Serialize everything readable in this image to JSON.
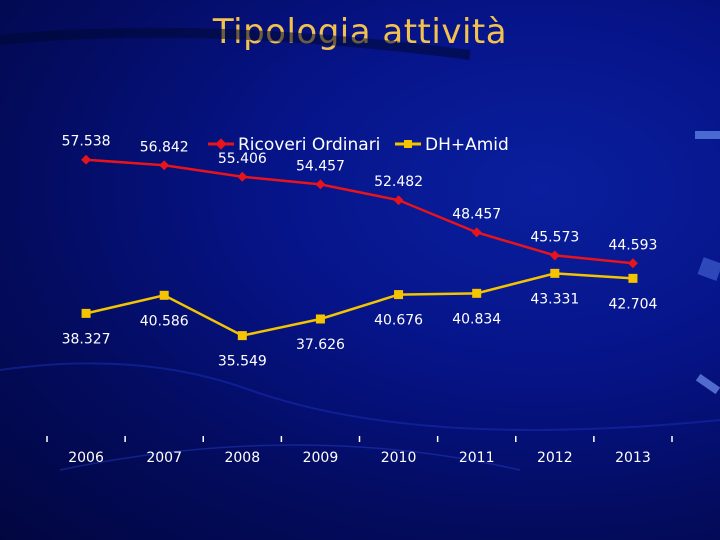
{
  "slide": {
    "title": "Tipologia attività"
  },
  "chart_data": {
    "type": "line",
    "title": "",
    "xlabel": "",
    "ylabel": "",
    "categories": [
      "2006",
      "2007",
      "2008",
      "2009",
      "2010",
      "2011",
      "2012",
      "2013"
    ],
    "ylim": [
      30,
      60
    ],
    "grid": false,
    "legend_position": "top",
    "series": [
      {
        "name": "Ricoveri Ordinari",
        "color": "#e8141c",
        "marker": "diamond",
        "values": [
          57.538,
          56.842,
          55.406,
          54.457,
          52.482,
          48.457,
          45.573,
          44.593
        ],
        "labels": [
          "57.538",
          "56.842",
          "55.406",
          "54.457",
          "52.482",
          "48.457",
          "45.573",
          "44.593"
        ]
      },
      {
        "name": "DH+Amid",
        "color": "#f5c400",
        "marker": "square",
        "values": [
          38.327,
          40.586,
          35.549,
          37.626,
          40.676,
          40.834,
          43.331,
          42.704
        ],
        "labels": [
          "38.327",
          "40.586",
          "35.549",
          "37.626",
          "40.676",
          "40.834",
          "43.331",
          "42.704"
        ]
      }
    ]
  }
}
